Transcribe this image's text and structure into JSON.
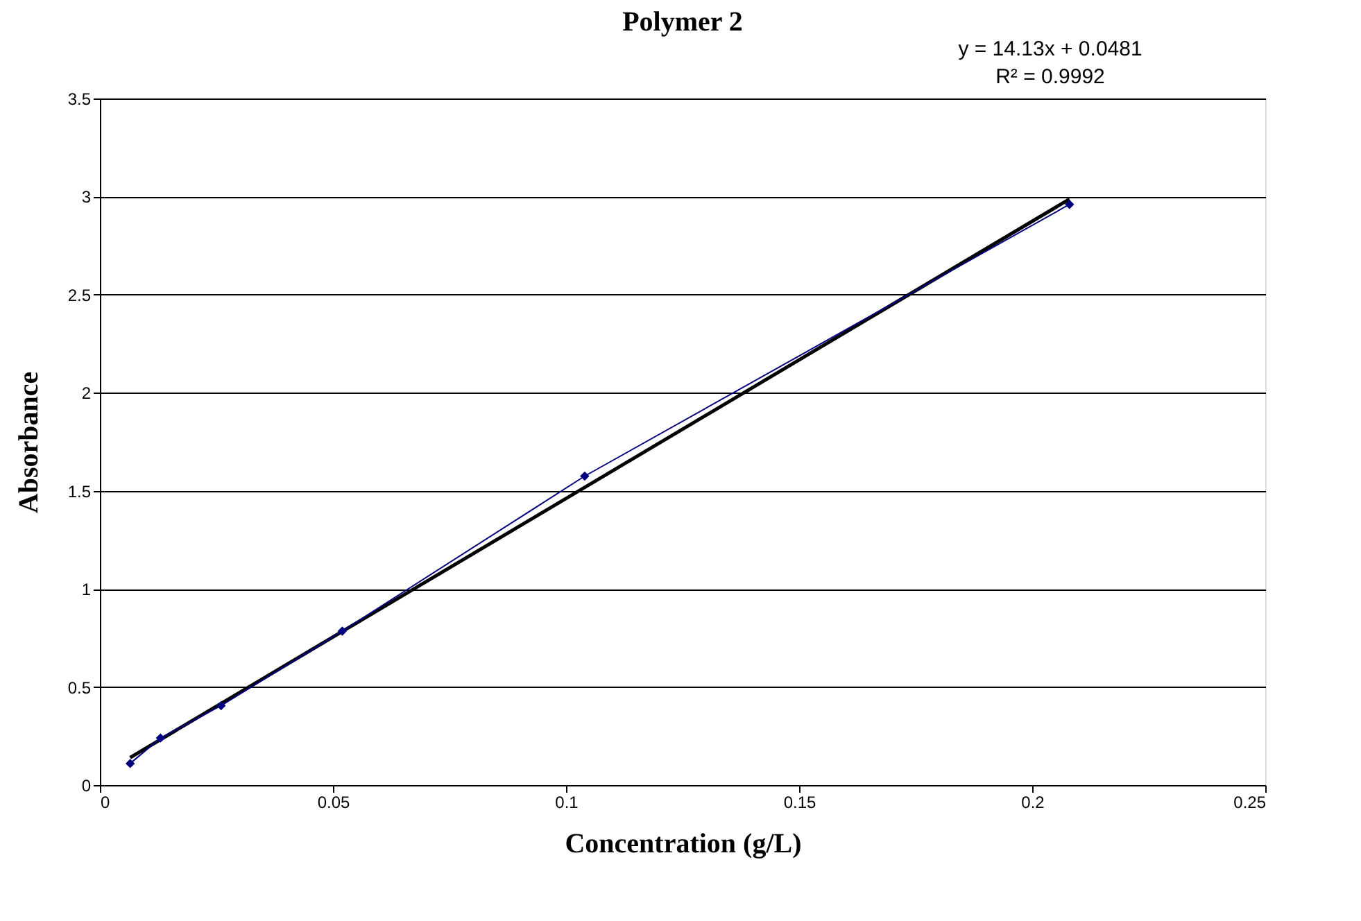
{
  "chart_data": {
    "type": "line",
    "marker": "diamond",
    "title": "Polymer 2",
    "xlabel": "Concentration (g/L)",
    "ylabel": "Absorbance",
    "annotations": [
      "y = 14.13x + 0.0481",
      "R² = 0.9992"
    ],
    "xlim": [
      0,
      0.25
    ],
    "xticks": [
      0,
      0.05,
      0.1,
      0.15,
      0.2,
      0.25
    ],
    "ylim": [
      0,
      3.5
    ],
    "yticks": [
      0,
      0.5,
      1,
      1.5,
      2,
      2.5,
      3,
      3.5
    ],
    "grid": "y",
    "legend": false,
    "series": [
      {
        "type": "line",
        "marker": "none",
        "color": "#000000",
        "x": [
          0.0065,
          0.208
        ],
        "values": [
          0.14,
          2.987
        ]
      },
      {
        "color": "#000080",
        "x": [
          0.0065,
          0.013,
          0.026,
          0.052,
          0.104,
          0.208
        ],
        "values": [
          0.11,
          0.24,
          0.405,
          0.785,
          1.575,
          2.96
        ]
      }
    ]
  }
}
